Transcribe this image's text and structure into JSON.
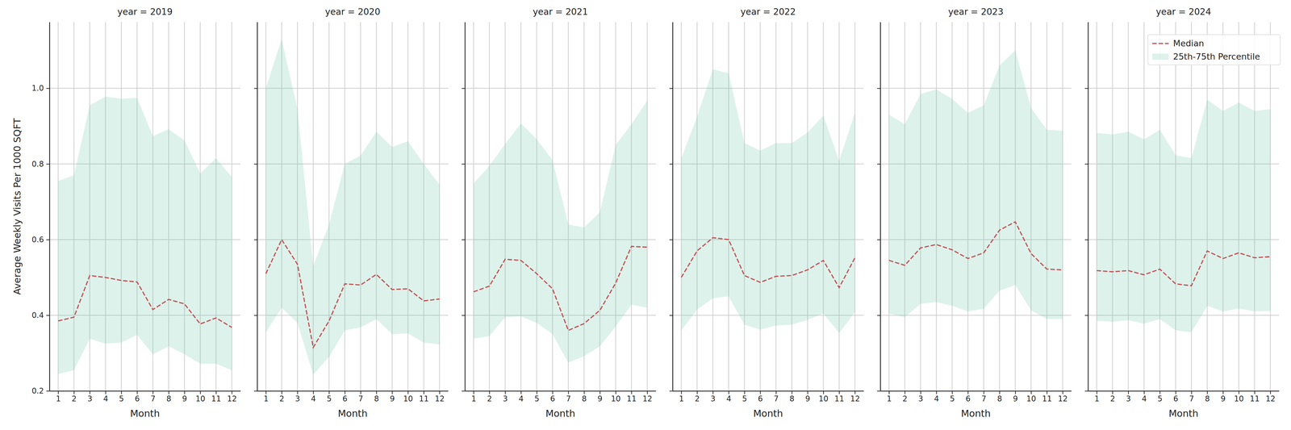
{
  "chart_data": [
    {
      "type": "line",
      "title": "year = 2019",
      "x_label": "Month",
      "y_label": "Average Weekly Visits Per 1000 SQFT",
      "x": [
        1,
        2,
        3,
        4,
        5,
        6,
        7,
        8,
        9,
        10,
        11,
        12
      ],
      "xlim": [
        0.45,
        12.55
      ],
      "xticks": [
        1,
        2,
        3,
        4,
        5,
        6,
        7,
        8,
        9,
        10,
        11,
        12
      ],
      "ylim": [
        0.2,
        1.175
      ],
      "yticks": [
        0.2,
        0.4,
        0.6,
        0.8,
        {
          "value": 1.0,
          "label": "1.0"
        }
      ],
      "grid": true,
      "series": [
        {
          "name": "Median",
          "type": "line",
          "line_style": "dashed",
          "color": "#c44e52",
          "values": [
            0.385,
            0.395,
            0.505,
            0.5,
            0.492,
            0.488,
            0.415,
            0.442,
            0.43,
            0.377,
            0.393,
            0.368
          ]
        },
        {
          "name": "25th-75th Percentile",
          "type": "area",
          "color": "#66c2a5",
          "upper": [
            0.755,
            0.77,
            0.955,
            0.978,
            0.972,
            0.975,
            0.873,
            0.892,
            0.862,
            0.775,
            0.815,
            0.765
          ],
          "lower": [
            0.245,
            0.255,
            0.338,
            0.325,
            0.328,
            0.348,
            0.297,
            0.318,
            0.297,
            0.272,
            0.272,
            0.255
          ]
        }
      ]
    },
    {
      "type": "line",
      "title": "year = 2020",
      "x_label": "Month",
      "tick_labels": "x",
      "x": [
        1,
        2,
        3,
        4,
        5,
        6,
        7,
        8,
        9,
        10,
        11,
        12
      ],
      "xlim": [
        0.45,
        12.55
      ],
      "xticks": [
        1,
        2,
        3,
        4,
        5,
        6,
        7,
        8,
        9,
        10,
        11,
        12
      ],
      "ylim": [
        0.2,
        1.175
      ],
      "yticks": [
        0.2,
        0.4,
        0.6,
        0.8,
        {
          "value": 1.0,
          "label": "1.0"
        }
      ],
      "grid": true,
      "series": [
        {
          "name": "Median",
          "type": "line",
          "line_style": "dashed",
          "color": "#c44e52",
          "values": [
            0.51,
            0.6,
            0.535,
            0.315,
            0.385,
            0.483,
            0.48,
            0.508,
            0.468,
            0.47,
            0.438,
            0.443
          ]
        },
        {
          "name": "25th-75th Percentile",
          "type": "area",
          "color": "#66c2a5",
          "upper": [
            1.0,
            1.13,
            0.945,
            0.53,
            0.64,
            0.8,
            0.822,
            0.885,
            0.845,
            0.86,
            0.8,
            0.745
          ],
          "lower": [
            0.355,
            0.42,
            0.38,
            0.243,
            0.29,
            0.36,
            0.368,
            0.39,
            0.35,
            0.352,
            0.328,
            0.323
          ]
        }
      ]
    },
    {
      "type": "line",
      "title": "year = 2021",
      "x_label": "Month",
      "tick_labels": "x",
      "x": [
        1,
        2,
        3,
        4,
        5,
        6,
        7,
        8,
        9,
        10,
        11,
        12
      ],
      "xlim": [
        0.45,
        12.55
      ],
      "xticks": [
        1,
        2,
        3,
        4,
        5,
        6,
        7,
        8,
        9,
        10,
        11,
        12
      ],
      "ylim": [
        0.2,
        1.175
      ],
      "yticks": [
        0.2,
        0.4,
        0.6,
        0.8,
        {
          "value": 1.0,
          "label": "1.0"
        }
      ],
      "grid": true,
      "series": [
        {
          "name": "Median",
          "type": "line",
          "line_style": "dashed",
          "color": "#c44e52",
          "values": [
            0.462,
            0.477,
            0.548,
            0.545,
            0.51,
            0.47,
            0.36,
            0.378,
            0.413,
            0.485,
            0.582,
            0.58
          ]
        },
        {
          "name": "25th-75th Percentile",
          "type": "area",
          "color": "#66c2a5",
          "upper": [
            0.748,
            0.795,
            0.853,
            0.907,
            0.865,
            0.81,
            0.64,
            0.632,
            0.672,
            0.85,
            0.905,
            0.967
          ],
          "lower": [
            0.338,
            0.345,
            0.395,
            0.397,
            0.38,
            0.35,
            0.275,
            0.292,
            0.318,
            0.37,
            0.428,
            0.42
          ]
        }
      ]
    },
    {
      "type": "line",
      "title": "year = 2022",
      "x_label": "Month",
      "tick_labels": "x",
      "x": [
        1,
        2,
        3,
        4,
        5,
        6,
        7,
        8,
        9,
        10,
        11,
        12
      ],
      "xlim": [
        0.45,
        12.55
      ],
      "xticks": [
        1,
        2,
        3,
        4,
        5,
        6,
        7,
        8,
        9,
        10,
        11,
        12
      ],
      "ylim": [
        0.2,
        1.175
      ],
      "yticks": [
        0.2,
        0.4,
        0.6,
        0.8,
        {
          "value": 1.0,
          "label": "1.0"
        }
      ],
      "grid": true,
      "series": [
        {
          "name": "Median",
          "type": "line",
          "line_style": "dashed",
          "color": "#c44e52",
          "values": [
            0.5,
            0.57,
            0.605,
            0.6,
            0.505,
            0.487,
            0.503,
            0.505,
            0.52,
            0.545,
            0.473,
            0.552
          ]
        },
        {
          "name": "25th-75th Percentile",
          "type": "area",
          "color": "#66c2a5",
          "upper": [
            0.815,
            0.925,
            1.05,
            1.04,
            0.855,
            0.835,
            0.855,
            0.855,
            0.883,
            0.928,
            0.808,
            0.935
          ],
          "lower": [
            0.36,
            0.415,
            0.445,
            0.45,
            0.375,
            0.362,
            0.373,
            0.375,
            0.388,
            0.405,
            0.353,
            0.408
          ]
        }
      ]
    },
    {
      "type": "line",
      "title": "year = 2023",
      "x_label": "Month",
      "tick_labels": "x",
      "x": [
        1,
        2,
        3,
        4,
        5,
        6,
        7,
        8,
        9,
        10,
        11,
        12
      ],
      "xlim": [
        0.45,
        12.55
      ],
      "xticks": [
        1,
        2,
        3,
        4,
        5,
        6,
        7,
        8,
        9,
        10,
        11,
        12
      ],
      "ylim": [
        0.2,
        1.175
      ],
      "yticks": [
        0.2,
        0.4,
        0.6,
        0.8,
        {
          "value": 1.0,
          "label": "1.0"
        }
      ],
      "grid": true,
      "series": [
        {
          "name": "Median",
          "type": "line",
          "line_style": "dashed",
          "color": "#c44e52",
          "values": [
            0.545,
            0.532,
            0.578,
            0.587,
            0.573,
            0.55,
            0.565,
            0.625,
            0.647,
            0.563,
            0.522,
            0.52
          ]
        },
        {
          "name": "25th-75th Percentile",
          "type": "area",
          "color": "#66c2a5",
          "upper": [
            0.93,
            0.905,
            0.985,
            0.997,
            0.972,
            0.935,
            0.955,
            1.06,
            1.1,
            0.948,
            0.89,
            0.888
          ],
          "lower": [
            0.405,
            0.395,
            0.43,
            0.435,
            0.425,
            0.41,
            0.417,
            0.465,
            0.48,
            0.413,
            0.39,
            0.39
          ]
        }
      ]
    },
    {
      "type": "line",
      "title": "year = 2024",
      "x_label": "Month",
      "tick_labels": "x",
      "legend": "upper right",
      "x": [
        1,
        2,
        3,
        4,
        5,
        6,
        7,
        8,
        9,
        10,
        11,
        12
      ],
      "xlim": [
        0.45,
        12.55
      ],
      "xticks": [
        1,
        2,
        3,
        4,
        5,
        6,
        7,
        8,
        9,
        10,
        11,
        12
      ],
      "ylim": [
        0.2,
        1.175
      ],
      "yticks": [
        0.2,
        0.4,
        0.6,
        0.8,
        {
          "value": 1.0,
          "label": "1.0"
        }
      ],
      "grid": true,
      "series": [
        {
          "name": "Median",
          "type": "line",
          "line_style": "dashed",
          "color": "#c44e52",
          "values": [
            0.518,
            0.515,
            0.518,
            0.507,
            0.522,
            0.483,
            0.478,
            0.57,
            0.55,
            0.565,
            0.552,
            0.555
          ]
        },
        {
          "name": "25th-75th Percentile",
          "type": "area",
          "color": "#66c2a5",
          "upper": [
            0.882,
            0.878,
            0.885,
            0.865,
            0.89,
            0.823,
            0.815,
            0.97,
            0.94,
            0.962,
            0.94,
            0.945
          ],
          "lower": [
            0.385,
            0.383,
            0.387,
            0.378,
            0.39,
            0.36,
            0.355,
            0.425,
            0.41,
            0.418,
            0.41,
            0.412
          ]
        }
      ]
    }
  ]
}
